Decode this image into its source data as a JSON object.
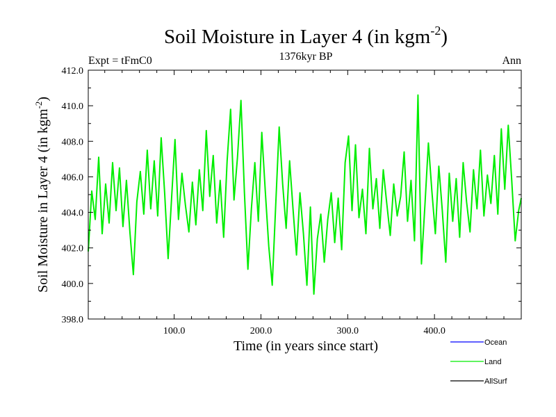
{
  "chart_data": {
    "type": "line",
    "title_main": "Soil Moisture in Layer 4 (in kgm",
    "title_sup": "-2",
    "title_close": ")",
    "subtitle_left": "Expt = tFmC0",
    "subtitle_center": "1376kyr BP",
    "subtitle_right": "Ann",
    "xlabel": "Time (in years since start)",
    "ylabel_main": "Soil Moisture in Layer 4 (in kgm",
    "ylabel_sup": "-2",
    "ylabel_close": ")",
    "xlim": [
      1,
      500
    ],
    "ylim": [
      398,
      412
    ],
    "xticks": [
      100,
      200,
      300,
      400
    ],
    "xtick_labels": [
      "100.0",
      "200.0",
      "300.0",
      "400.0"
    ],
    "yticks": [
      398,
      400,
      402,
      404,
      406,
      408,
      410,
      412
    ],
    "ytick_labels": [
      "398.0",
      "400.0",
      "402.0",
      "404.0",
      "406.0",
      "408.0",
      "410.0",
      "412.0"
    ],
    "legend": [
      {
        "name": "Ocean",
        "color": "#0000ff"
      },
      {
        "name": "Land",
        "color": "#00ee00"
      },
      {
        "name": "AllSurf",
        "color": "#000000"
      }
    ],
    "series": [
      {
        "name": "Land",
        "color": "#00ee00",
        "points": [
          [
            1,
            401.8
          ],
          [
            5,
            405.2
          ],
          [
            9,
            403.6
          ],
          [
            13,
            407.1
          ],
          [
            17,
            402.8
          ],
          [
            21,
            405.6
          ],
          [
            25,
            403.4
          ],
          [
            29,
            406.8
          ],
          [
            33,
            404.1
          ],
          [
            37,
            406.5
          ],
          [
            41,
            403.2
          ],
          [
            45,
            405.8
          ],
          [
            49,
            402.9
          ],
          [
            53,
            400.5
          ],
          [
            57,
            404.6
          ],
          [
            61,
            406.3
          ],
          [
            65,
            403.9
          ],
          [
            69,
            407.5
          ],
          [
            73,
            404.2
          ],
          [
            77,
            406.9
          ],
          [
            81,
            403.8
          ],
          [
            85,
            408.2
          ],
          [
            89,
            405.1
          ],
          [
            93,
            401.4
          ],
          [
            97,
            404.8
          ],
          [
            101,
            408.1
          ],
          [
            105,
            403.6
          ],
          [
            109,
            406.2
          ],
          [
            113,
            404.4
          ],
          [
            117,
            402.9
          ],
          [
            121,
            405.7
          ],
          [
            125,
            403.3
          ],
          [
            129,
            406.4
          ],
          [
            133,
            404.1
          ],
          [
            137,
            408.6
          ],
          [
            141,
            404.9
          ],
          [
            145,
            407.2
          ],
          [
            149,
            403.4
          ],
          [
            153,
            405.8
          ],
          [
            157,
            402.6
          ],
          [
            161,
            406.9
          ],
          [
            165,
            409.8
          ],
          [
            169,
            404.7
          ],
          [
            173,
            407.1
          ],
          [
            177,
            410.3
          ],
          [
            181,
            405.1
          ],
          [
            185,
            400.8
          ],
          [
            189,
            404.2
          ],
          [
            193,
            406.8
          ],
          [
            197,
            403.5
          ],
          [
            201,
            408.5
          ],
          [
            205,
            405.2
          ],
          [
            209,
            402.1
          ],
          [
            213,
            399.9
          ],
          [
            217,
            404.4
          ],
          [
            221,
            408.8
          ],
          [
            225,
            405.6
          ],
          [
            229,
            403.1
          ],
          [
            233,
            406.9
          ],
          [
            237,
            404.2
          ],
          [
            241,
            401.6
          ],
          [
            245,
            405.1
          ],
          [
            249,
            402.8
          ],
          [
            253,
            399.9
          ],
          [
            257,
            404.3
          ],
          [
            261,
            399.4
          ],
          [
            265,
            402.5
          ],
          [
            269,
            403.9
          ],
          [
            273,
            401.2
          ],
          [
            277,
            403.6
          ],
          [
            281,
            405.1
          ],
          [
            285,
            402.3
          ],
          [
            289,
            404.8
          ],
          [
            293,
            401.9
          ],
          [
            297,
            406.8
          ],
          [
            301,
            408.3
          ],
          [
            305,
            404.1
          ],
          [
            309,
            407.8
          ],
          [
            313,
            403.7
          ],
          [
            317,
            405.3
          ],
          [
            321,
            402.8
          ],
          [
            325,
            407.6
          ],
          [
            329,
            404.2
          ],
          [
            333,
            405.9
          ],
          [
            337,
            403.1
          ],
          [
            341,
            406.4
          ],
          [
            345,
            404.5
          ],
          [
            349,
            402.7
          ],
          [
            353,
            405.6
          ],
          [
            357,
            403.8
          ],
          [
            361,
            404.9
          ],
          [
            365,
            407.4
          ],
          [
            369,
            403.5
          ],
          [
            373,
            405.8
          ],
          [
            377,
            402.4
          ],
          [
            381,
            410.6
          ],
          [
            385,
            401.1
          ],
          [
            389,
            404.4
          ],
          [
            393,
            407.9
          ],
          [
            397,
            405.2
          ],
          [
            401,
            402.8
          ],
          [
            405,
            406.6
          ],
          [
            409,
            404.1
          ],
          [
            413,
            401.2
          ],
          [
            417,
            406.2
          ],
          [
            421,
            403.5
          ],
          [
            425,
            405.9
          ],
          [
            429,
            402.6
          ],
          [
            433,
            406.8
          ],
          [
            437,
            404.6
          ],
          [
            441,
            402.9
          ],
          [
            445,
            406.4
          ],
          [
            449,
            404.2
          ],
          [
            453,
            407.5
          ],
          [
            457,
            403.8
          ],
          [
            461,
            406.1
          ],
          [
            465,
            404.5
          ],
          [
            469,
            407.2
          ],
          [
            473,
            403.9
          ],
          [
            477,
            408.7
          ],
          [
            481,
            405.3
          ],
          [
            485,
            408.9
          ],
          [
            489,
            405.8
          ],
          [
            493,
            402.4
          ],
          [
            497,
            404.1
          ],
          [
            500,
            404.8
          ]
        ]
      }
    ]
  }
}
